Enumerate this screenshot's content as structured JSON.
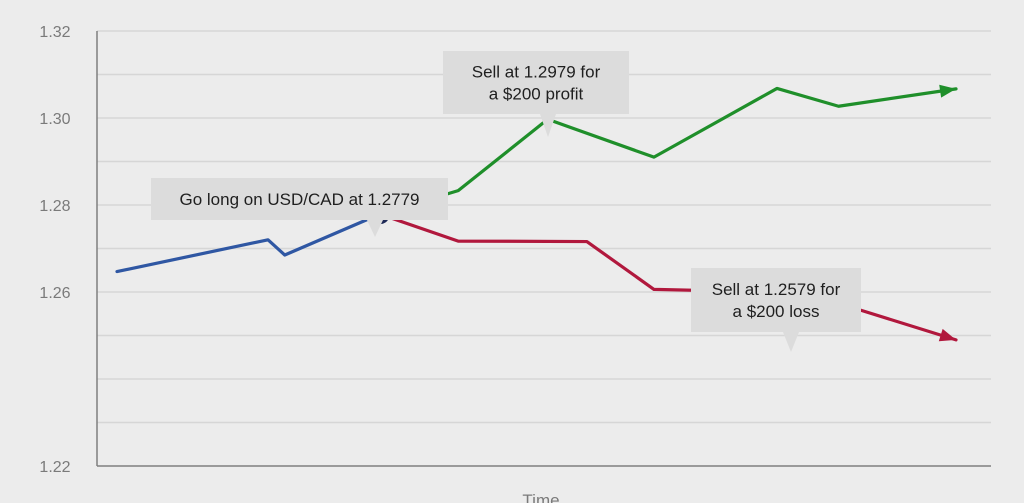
{
  "colors": {
    "background": "#ececec",
    "grid": "#d6d6d6",
    "axis": "#7f7f7f",
    "tick_text": "#7a7a7a",
    "callout_bg": "#dcdcdc",
    "callout_text": "#1f1f1f",
    "entry_series": "#2f57a3",
    "profit_series": "#1f8f2a",
    "loss_series": "#b1183d",
    "entry_marker": "#1f2a57"
  },
  "chart_data": {
    "type": "line",
    "xlabel": "Time",
    "ylabel": "",
    "ylim": [
      1.22,
      1.32
    ],
    "y_ticks": [
      "1.32",
      "1.30",
      "1.28",
      "1.26",
      "1.22"
    ],
    "y_tick_values": [
      1.32,
      1.3,
      1.28,
      1.26,
      1.22
    ],
    "grid": true,
    "series": [
      {
        "key": "entry",
        "color": "#2f57a3",
        "x": [
          0,
          2.7,
          3.0,
          4.7
        ],
        "y": [
          1.2647,
          1.272,
          1.2685,
          1.2779
        ]
      },
      {
        "key": "profit",
        "color": "#1f8f2a",
        "arrow": true,
        "x": [
          4.7,
          6.1,
          7.7,
          9.6,
          11.8,
          12.9,
          15.0
        ],
        "y": [
          1.2779,
          1.2833,
          1.2997,
          1.291,
          1.3068,
          1.3027,
          1.3067
        ]
      },
      {
        "key": "loss",
        "color": "#b1183d",
        "arrow": true,
        "x": [
          4.7,
          6.1,
          8.4,
          9.6,
          12.4,
          13.3,
          15.0
        ],
        "y": [
          1.2779,
          1.2717,
          1.2716,
          1.2606,
          1.2598,
          1.2558,
          1.249
        ]
      }
    ],
    "entry_point": {
      "x": 4.7,
      "y": 1.2779
    },
    "annotations": [
      {
        "key": "entry",
        "lines": [
          "Go long on USD/CAD at 1.2779"
        ]
      },
      {
        "key": "profit",
        "lines": [
          "Sell at 1.2979 for",
          "a $200 profit"
        ]
      },
      {
        "key": "loss",
        "lines": [
          "Sell at 1.2579 for",
          "a $200 loss"
        ]
      }
    ]
  }
}
